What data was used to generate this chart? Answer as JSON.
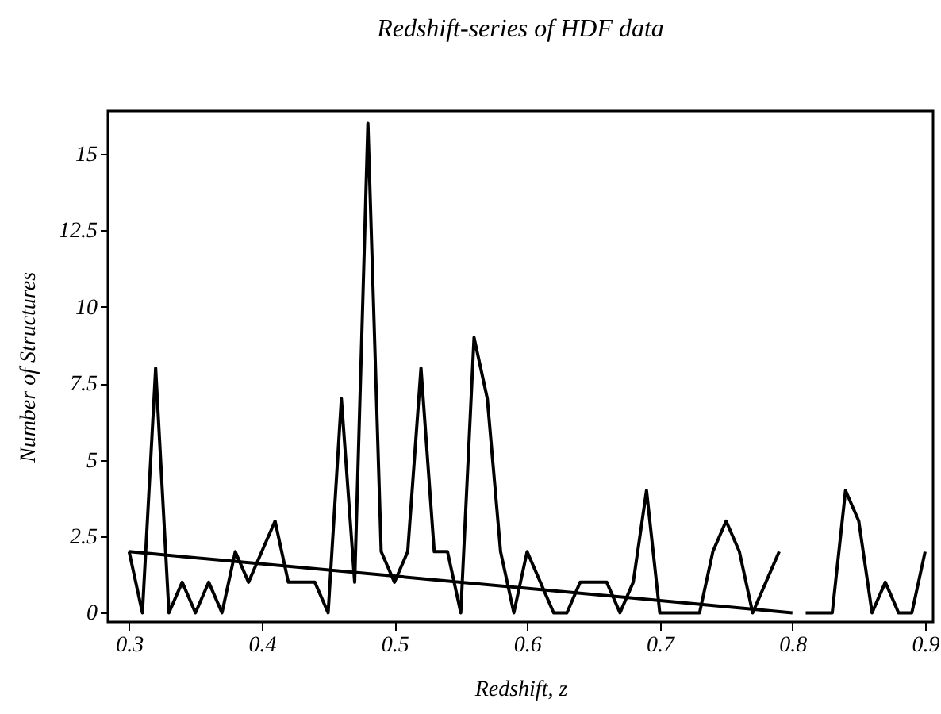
{
  "chart_data": {
    "type": "line",
    "title": "Redshift-series of HDF data",
    "xlabel": "Redshift, z",
    "ylabel": "Number of Structures",
    "x": [
      0.3,
      0.31,
      0.32,
      0.33,
      0.34,
      0.35,
      0.36,
      0.37,
      0.38,
      0.39,
      0.4,
      0.41,
      0.42,
      0.43,
      0.44,
      0.45,
      0.46,
      0.47,
      0.48,
      0.49,
      0.5,
      0.51,
      0.52,
      0.53,
      0.54,
      0.55,
      0.56,
      0.57,
      0.58,
      0.59,
      0.6,
      0.61,
      0.62,
      0.63,
      0.64,
      0.65,
      0.66,
      0.67,
      0.68,
      0.69,
      0.7,
      0.71,
      0.72,
      0.73,
      0.74,
      0.75,
      0.76,
      0.77,
      0.78,
      0.79,
      0.8,
      0.81,
      0.82,
      0.83,
      0.84,
      0.85,
      0.86,
      0.87,
      0.88,
      0.89,
      0.9
    ],
    "series": [
      {
        "color": "#000000",
        "values": [
          2,
          0,
          8,
          0,
          1,
          0,
          1,
          0,
          2,
          1,
          2,
          3,
          1,
          1,
          1,
          0,
          7,
          1,
          16,
          2,
          1,
          2,
          8,
          2,
          2,
          0,
          9,
          7,
          2,
          0,
          2,
          1,
          0,
          0,
          1,
          1,
          1,
          0,
          1,
          4,
          0,
          0,
          0,
          0,
          2,
          3,
          2,
          0,
          1,
          2,
          null,
          0,
          0,
          0,
          4,
          3,
          0,
          1,
          0,
          0,
          2
        ]
      },
      {
        "type": "line",
        "color": "#000000",
        "x": [
          0.3,
          0.8
        ],
        "values": [
          2,
          0
        ]
      }
    ],
    "xlim": [
      0.284,
      0.906
    ],
    "ylim": [
      -0.3,
      16.4
    ],
    "xticks": [
      0.3,
      0.4,
      0.5,
      0.6,
      0.7,
      0.8,
      0.9
    ],
    "yticks": [
      0,
      2.5,
      5,
      7.5,
      10,
      12.5,
      15
    ],
    "line_style": "solid"
  }
}
